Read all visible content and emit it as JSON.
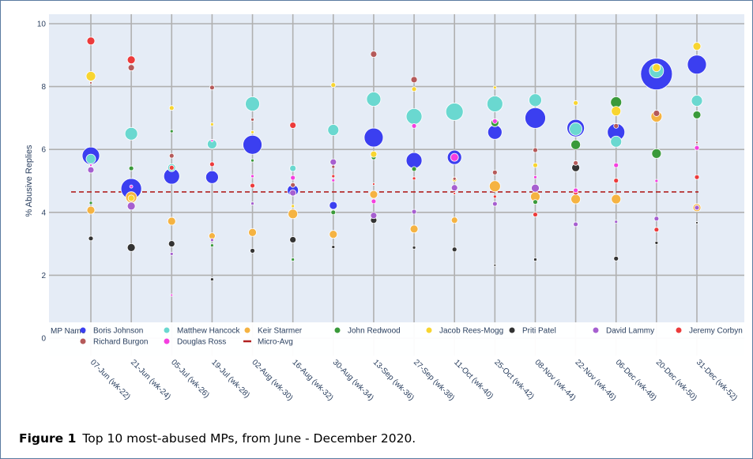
{
  "figure": {
    "caption_label": "Figure 1",
    "caption_text": "Top 10 most-abused MPs, from June - December 2020."
  },
  "chart_data": {
    "type": "scatter",
    "ylabel": "% Abusive Replies",
    "xlabel": "",
    "ylim": [
      0,
      10
    ],
    "yticks": [
      0,
      2,
      4,
      6,
      8,
      10
    ],
    "grid": true,
    "legend_title": "MP Name",
    "legend_position": "bottom",
    "categories": [
      "07-Jun (wk-22)",
      "21-Jun (wk-24)",
      "05-Jul (wk-26)",
      "19-Jul (wk-28)",
      "02-Aug (wk-30)",
      "16-Aug (wk-32)",
      "30-Aug (wk-34)",
      "13-Sep (wk-36)",
      "27-Sep (wk-38)",
      "11-Oct (wk-40)",
      "25-Oct (wk-42)",
      "08-Nov (wk-44)",
      "22-Nov (wk-46)",
      "06-Dec (wk-48)",
      "20-Dec (wk-50)",
      "31-Dec (wk-52)"
    ],
    "series": [
      {
        "name": "Boris Johnson",
        "color": "#3b3ff0",
        "values": [
          5.8,
          4.75,
          5.15,
          5.12,
          6.15,
          4.7,
          4.22,
          6.38,
          5.65,
          5.75,
          6.55,
          7.0,
          6.68,
          6.55,
          8.4,
          8.7
        ],
        "sizes": [
          11,
          13,
          10,
          8,
          12,
          7,
          5,
          12,
          10,
          9,
          9,
          13,
          11,
          11,
          20,
          12
        ]
      },
      {
        "name": "Matthew Hancock",
        "color": "#6ad8d0",
        "values": [
          5.7,
          6.5,
          5.42,
          6.17,
          7.45,
          5.4,
          6.62,
          7.6,
          7.05,
          7.2,
          7.45,
          7.57,
          6.65,
          6.25,
          8.5,
          7.55
        ],
        "sizes": [
          6,
          8,
          5,
          6,
          9,
          4,
          7,
          9,
          10,
          11,
          10,
          8,
          8,
          7,
          9,
          7
        ]
      },
      {
        "name": "Keir Starmer",
        "color": "#f5b342",
        "values": [
          4.07,
          4.48,
          3.72,
          3.25,
          3.36,
          3.95,
          3.3,
          4.57,
          3.47,
          3.75,
          4.83,
          4.5,
          4.42,
          4.42,
          7.05,
          4.15
        ],
        "sizes": [
          5,
          7,
          5,
          4,
          5,
          6,
          5,
          5,
          5,
          4,
          7,
          6,
          6,
          6,
          7,
          5
        ]
      },
      {
        "name": "John Redwood",
        "color": "#3a9a3a",
        "values": [
          4.3,
          5.4,
          6.58,
          2.95,
          5.65,
          2.5,
          4.0,
          5.75,
          5.38,
          5.05,
          6.85,
          4.33,
          6.15,
          7.5,
          5.87,
          7.1
        ],
        "sizes": [
          2,
          3,
          2,
          2,
          2,
          2,
          3,
          3,
          3,
          2,
          5,
          3,
          6,
          7,
          6,
          5
        ]
      },
      {
        "name": "Jacob Rees-Mogg",
        "color": "#f8d530",
        "values": [
          8.33,
          4.45,
          7.32,
          6.8,
          6.55,
          4.2,
          8.05,
          5.85,
          7.92,
          5.05,
          7.97,
          5.5,
          7.48,
          7.22,
          8.6,
          9.28
        ],
        "sizes": [
          6,
          4,
          3,
          2,
          2,
          2,
          3,
          4,
          3,
          3,
          2,
          3,
          3,
          6,
          5,
          5
        ]
      },
      {
        "name": "Priti Patel",
        "color": "#333333",
        "values": [
          3.17,
          2.88,
          3.0,
          1.87,
          2.78,
          3.13,
          2.9,
          3.75,
          2.88,
          2.82,
          2.32,
          2.5,
          5.42,
          2.53,
          3.03,
          3.67
        ],
        "sizes": [
          3,
          5,
          4,
          2,
          3,
          4,
          2,
          4,
          2,
          3,
          1.5,
          2,
          5,
          3,
          2,
          1.5
        ]
      },
      {
        "name": "David Lammy",
        "color": "#a65fd0",
        "values": [
          5.35,
          4.2,
          2.68,
          3.12,
          4.28,
          4.62,
          5.6,
          3.9,
          4.02,
          4.78,
          4.27,
          4.77,
          3.62,
          3.7,
          3.8,
          4.15
        ],
        "sizes": [
          4,
          5,
          2,
          2,
          2,
          4,
          4,
          4,
          3,
          4,
          3,
          5,
          3,
          2,
          3,
          3
        ]
      },
      {
        "name": "Jeremy Corbyn",
        "color": "#ec3b3b",
        "values": [
          9.45,
          8.85,
          5.42,
          5.53,
          4.85,
          6.77,
          5.15,
          4.9,
          5.08,
          4.6,
          4.5,
          3.93,
          4.63,
          5.01,
          3.45,
          5.12
        ],
        "sizes": [
          5,
          5,
          3,
          3,
          3,
          4,
          2,
          1.5,
          2,
          1.5,
          2,
          3,
          3,
          3,
          3,
          3
        ]
      },
      {
        "name": "Richard Burgon",
        "color": "#b55a5a",
        "values": [
          8.12,
          8.6,
          5.8,
          7.97,
          6.95,
          4.87,
          5.45,
          9.03,
          8.22,
          5.07,
          5.27,
          5.98,
          5.57,
          6.75,
          7.15,
          6.22
        ],
        "sizes": [
          1.5,
          4,
          3,
          3,
          2,
          3,
          2,
          4,
          4,
          2,
          3,
          3,
          3,
          3,
          4,
          1.5
        ]
      },
      {
        "name": "Douglas Ross",
        "color": "#f53fe0",
        "values": [
          5.5,
          4.82,
          1.37,
          6.28,
          5.15,
          5.1,
          5.02,
          4.35,
          6.75,
          5.75,
          6.9,
          5.12,
          4.7,
          5.5,
          5.0,
          6.05
        ],
        "sizes": [
          1.5,
          2,
          1.5,
          1.5,
          2,
          3,
          2,
          3,
          3,
          5,
          3,
          2,
          3,
          3,
          2,
          3
        ]
      },
      {
        "name": "Micro-Avg",
        "color": "#b22020",
        "type": "line-dashed",
        "value": 4.65
      }
    ]
  }
}
